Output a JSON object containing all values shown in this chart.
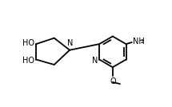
{
  "bg_color": "#ffffff",
  "line_color": "#000000",
  "line_width": 1.3,
  "font_size": 7.0,
  "sub_font_size": 5.2,
  "fig_width": 2.15,
  "fig_height": 1.34,
  "dpi": 100,
  "xlim": [
    0.0,
    10.0
  ],
  "ylim": [
    0.0,
    6.2
  ]
}
